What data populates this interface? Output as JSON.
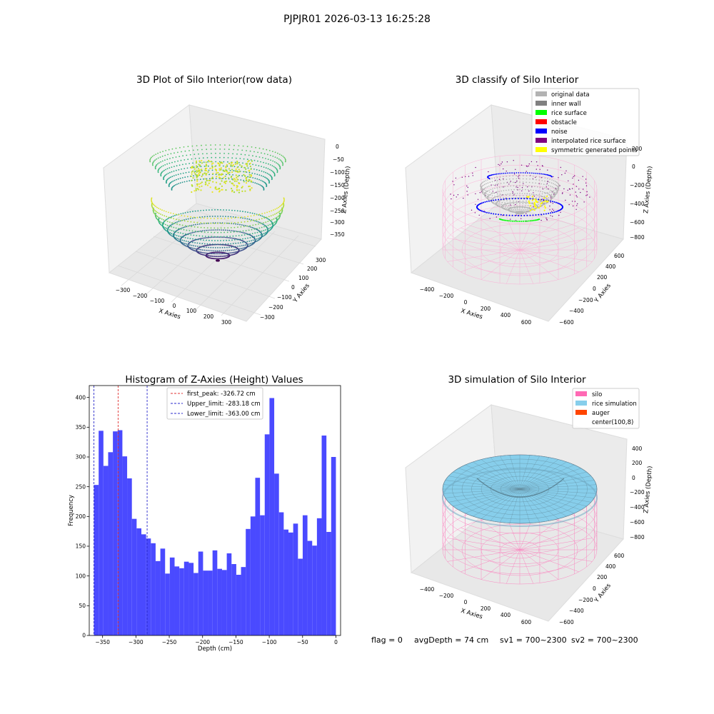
{
  "suptitle": "PJPJR01 2026-03-13 16:25:28",
  "status_line": {
    "flag": "flag = 0",
    "avg_depth": "avgDepth = 74 cm",
    "sv1": "sv1 = 700~2300",
    "sv2": "sv2 = 700~2300"
  },
  "colors": {
    "hist_bar": "#4a4aff",
    "first_peak": "#e03030",
    "limit_line": "#2a2acc",
    "silo": "#ff69b4",
    "rice_simulation": "#87ceeb",
    "auger": "#ff4500",
    "original_data": "#b3b3b3",
    "inner_wall": "#808080",
    "rice_surface": "#00ff00",
    "obstacle": "#ff0000",
    "noise": "#0000ff",
    "interpolated_rice_surface": "#800080",
    "symmetric_generated_points": "#ffff00"
  },
  "chart_data": [
    {
      "type": "scatter",
      "subtype": "3d",
      "title": "3D Plot of Silo Interior(row data)",
      "xlabel": "X Axies",
      "ylabel": "Y Axies",
      "zlabel": "Z Axies (Depth)",
      "xticks": [
        "−300",
        "−200",
        "−100",
        "0",
        "100",
        "200",
        "300"
      ],
      "yticks": [
        "−300",
        "−200",
        "−100",
        "0",
        "100",
        "200",
        "300"
      ],
      "zticks": [
        "0",
        "−50",
        "−100",
        "−150",
        "−200",
        "−250",
        "−300",
        "−350"
      ],
      "xlim": [
        -350,
        350
      ],
      "ylim": [
        -350,
        350
      ],
      "zlim": [
        -380,
        20
      ],
      "colormap": "viridis",
      "grid": true
    },
    {
      "type": "scatter",
      "subtype": "3d",
      "title": "3D classify of Silo Interior",
      "xlabel": "X Axies",
      "ylabel": "Y Axies",
      "zlabel": "Z Axies (Depth)",
      "xticks": [
        "−400",
        "−200",
        "0",
        "200",
        "400",
        "600"
      ],
      "yticks": [
        "−600",
        "−400",
        "−200",
        "0",
        "200",
        "400",
        "600"
      ],
      "zticks": [
        "200",
        "0",
        "−200",
        "−400",
        "−600",
        "−800"
      ],
      "legend": [
        "original data",
        "inner wall",
        "rice surface",
        "obstacle",
        "noise",
        "interpolated rice surface",
        "symmetric generated points"
      ],
      "legend_position": "top-right",
      "grid": true
    },
    {
      "type": "bar",
      "subtype": "histogram",
      "title": "Histogram of Z-Axies (Height) Values",
      "xlabel": "Depth (cm)",
      "ylabel": "Frequency",
      "xlim": [
        -370,
        7
      ],
      "ylim": [
        0,
        420
      ],
      "xticks": [
        -350,
        -300,
        -250,
        -200,
        -150,
        -100,
        -50,
        0
      ],
      "xtick_labels": [
        "−350",
        "−300",
        "−250",
        "−200",
        "−150",
        "−100",
        "−50",
        "0"
      ],
      "yticks": [
        0,
        50,
        100,
        150,
        200,
        250,
        300,
        350,
        400
      ],
      "bin_start": -363,
      "bin_end": 0,
      "values": [
        253,
        344,
        285,
        308,
        343,
        345,
        301,
        264,
        196,
        180,
        170,
        163,
        155,
        125,
        146,
        104,
        131,
        116,
        113,
        124,
        122,
        105,
        141,
        109,
        109,
        143,
        112,
        110,
        138,
        120,
        102,
        115,
        179,
        200,
        265,
        202,
        338,
        399,
        272,
        207,
        178,
        173,
        188,
        129,
        202,
        159,
        151,
        197,
        336,
        174,
        300
      ],
      "vlines": [
        {
          "name": "first_peak",
          "label": "first_peak: -326.72 cm",
          "x": -326.72
        },
        {
          "name": "upper_limit",
          "label": "Upper_limit: -283.18 cm",
          "x": -283.18
        },
        {
          "name": "lower_limit",
          "label": "Lower_limit: -363.00 cm",
          "x": -363.0
        }
      ],
      "legend_position": "top-center"
    },
    {
      "type": "scatter",
      "subtype": "3d-surface",
      "title": "3D simulation of Silo Interior",
      "xlabel": "X Axies",
      "ylabel": "Y Axies",
      "zlabel": "Z Axies (Depth)",
      "xticks": [
        "−400",
        "−200",
        "0",
        "200",
        "400",
        "600"
      ],
      "yticks": [
        "−600",
        "−400",
        "−200",
        "0",
        "200",
        "400",
        "600"
      ],
      "zticks": [
        "400",
        "200",
        "0",
        "−200",
        "−400",
        "−600",
        "−800"
      ],
      "legend": [
        "silo",
        "rice simulation",
        "auger",
        "center(100,8)"
      ],
      "legend_position": "top-right",
      "grid": true
    }
  ]
}
